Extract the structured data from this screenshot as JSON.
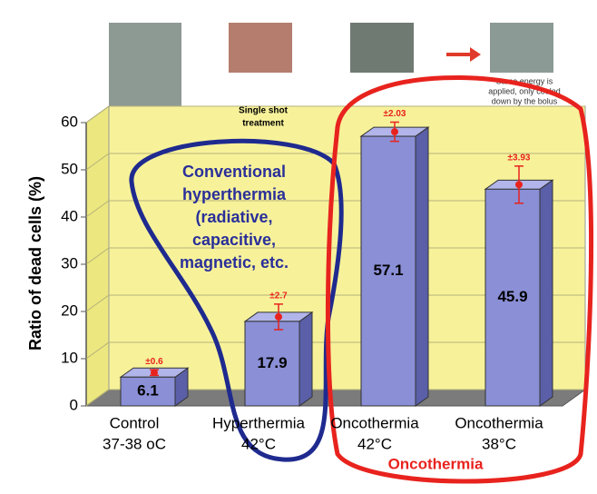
{
  "chart_data": {
    "type": "bar",
    "y_label": "Ratio of dead cells (%)",
    "categories": [
      [
        "Control",
        "37-38 oC"
      ],
      [
        "Hyperthermia",
        "42°C"
      ],
      [
        "Oncothermia",
        "42°C"
      ],
      [
        "Oncothermia",
        "38°C"
      ]
    ],
    "values": [
      6.1,
      17.9,
      57.1,
      45.9
    ],
    "errors": [
      0.6,
      2.7,
      2.03,
      3.93
    ],
    "error_labels": [
      "±0.6",
      "±2.7",
      "±2.03",
      "±3.93"
    ],
    "color": "#8a8fd6",
    "ylim": [
      0,
      60
    ],
    "yticks": [
      0,
      10,
      20,
      30,
      40,
      50,
      60
    ],
    "grid": true,
    "annotations": {
      "single_shot": [
        "Single shot",
        "treatment"
      ],
      "same_energy": [
        "Same energy is",
        "applied, only cooled",
        "down by the bolus"
      ],
      "conventional": [
        "Conventional",
        "hyperthermia",
        "(radiative,",
        "capacitive,",
        "magnetic, etc."
      ],
      "oncothermia": "Oncothermia"
    }
  }
}
